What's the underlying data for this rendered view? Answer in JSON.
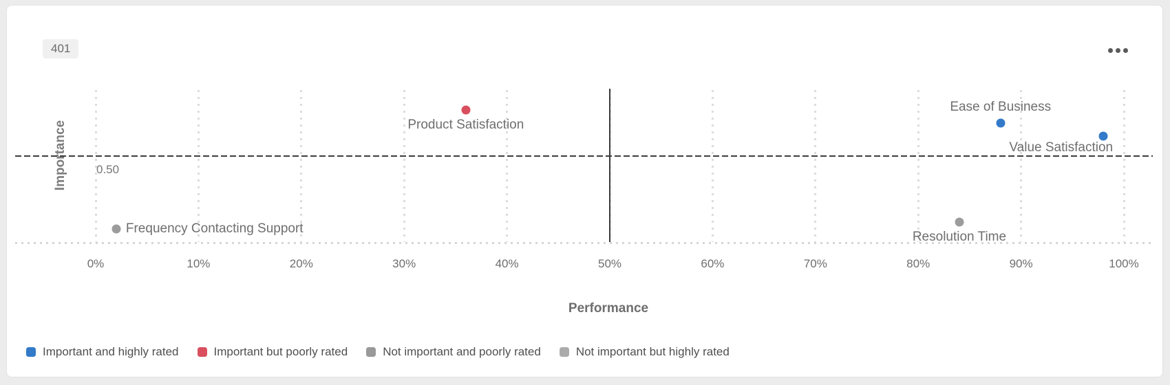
{
  "card": {
    "badge": "401",
    "menu_icon": "ellipsis-icon"
  },
  "chart_data": {
    "type": "scatter",
    "title": "",
    "xlabel": "Performance",
    "ylabel": "Importance",
    "xlim": [
      0,
      100
    ],
    "ylim": [
      0.37,
      0.6
    ],
    "x_ticks": [
      "0%",
      "10%",
      "20%",
      "30%",
      "40%",
      "50%",
      "60%",
      "70%",
      "80%",
      "90%",
      "100%"
    ],
    "x_tick_values": [
      0,
      10,
      20,
      30,
      40,
      50,
      60,
      70,
      80,
      90,
      100
    ],
    "grid": "dotted-vertical-every-10pct",
    "y_reference_line": 0.5,
    "y_reference_label": "0.50",
    "x_reference_line": 50,
    "points": [
      {
        "label": "Product Satisfaction",
        "x": 36,
        "y": 0.57,
        "color": "#d94f5e",
        "category": "Important but poorly rated",
        "label_pos": "below"
      },
      {
        "label": "Ease of Business",
        "x": 88,
        "y": 0.55,
        "color": "#337ac9",
        "category": "Important and highly rated",
        "label_pos": "above"
      },
      {
        "label": "Value Satisfaction",
        "x": 98,
        "y": 0.53,
        "color": "#337ac9",
        "category": "Important and highly rated",
        "label_pos": "below-left"
      },
      {
        "label": "Resolution Time",
        "x": 84,
        "y": 0.4,
        "color": "#9c9c9c",
        "category": "Not important and poorly rated",
        "label_pos": "below"
      },
      {
        "label": "Frequency Contacting Support",
        "x": 2,
        "y": 0.39,
        "color": "#9c9c9c",
        "category": "Not important and poorly rated",
        "label_pos": "right"
      }
    ],
    "legend": [
      {
        "label": "Important and highly rated",
        "color": "#337ac9"
      },
      {
        "label": "Important but poorly rated",
        "color": "#d94f5e"
      },
      {
        "label": "Not important and poorly rated",
        "color": "#999999"
      },
      {
        "label": "Not important but highly rated",
        "color": "#ababab"
      }
    ],
    "legend_position": "bottom-left"
  }
}
